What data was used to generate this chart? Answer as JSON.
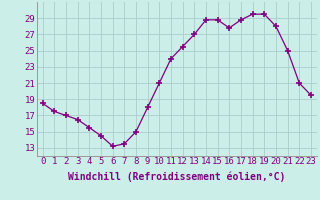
{
  "x": [
    0,
    1,
    2,
    3,
    4,
    5,
    6,
    7,
    8,
    9,
    10,
    11,
    12,
    13,
    14,
    15,
    16,
    17,
    18,
    19,
    20,
    21,
    22,
    23
  ],
  "y": [
    18.5,
    17.5,
    17.0,
    16.5,
    15.5,
    14.5,
    13.2,
    13.5,
    15.0,
    18.0,
    21.0,
    24.0,
    25.5,
    27.0,
    28.8,
    28.8,
    27.8,
    28.8,
    29.5,
    29.5,
    28.0,
    25.0,
    21.0,
    19.5
  ],
  "line_color": "#800080",
  "marker": "+",
  "marker_size": 4,
  "bg_color": "#cceee8",
  "grid_color": "#aacccc",
  "xlabel": "Windchill (Refroidissement éolien,°C)",
  "xlabel_color": "#800080",
  "xlabel_fontsize": 7,
  "tick_color": "#800080",
  "tick_fontsize": 6.5,
  "ylim": [
    12,
    31
  ],
  "yticks": [
    13,
    15,
    17,
    19,
    21,
    23,
    25,
    27,
    29
  ],
  "xlim": [
    -0.5,
    23.5
  ],
  "xticks": [
    0,
    1,
    2,
    3,
    4,
    5,
    6,
    7,
    8,
    9,
    10,
    11,
    12,
    13,
    14,
    15,
    16,
    17,
    18,
    19,
    20,
    21,
    22,
    23
  ],
  "xtick_labels": [
    "0",
    "1",
    "2",
    "3",
    "4",
    "5",
    "6",
    "7",
    "8",
    "9",
    "10",
    "11",
    "12",
    "13",
    "14",
    "15",
    "16",
    "17",
    "18",
    "19",
    "20",
    "21",
    "22",
    "23"
  ]
}
